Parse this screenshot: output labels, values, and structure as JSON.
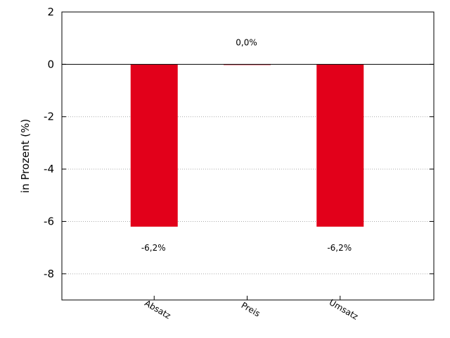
{
  "chart_data": {
    "type": "bar",
    "categories": [
      "Absatz",
      "Preis",
      "Umsatz"
    ],
    "values": [
      -6.2,
      0.0,
      -6.2
    ],
    "data_labels": [
      "-6,2%",
      "0,0%",
      "-6,2%"
    ],
    "title": "",
    "xlabel": "",
    "ylabel": "in Prozent (%)",
    "ylim": [
      -9,
      2
    ],
    "yticks": [
      2,
      0,
      -2,
      -4,
      -6,
      -8
    ],
    "grid": "horizontal dotted",
    "bar_color": "#e2001a",
    "legend": "none"
  }
}
